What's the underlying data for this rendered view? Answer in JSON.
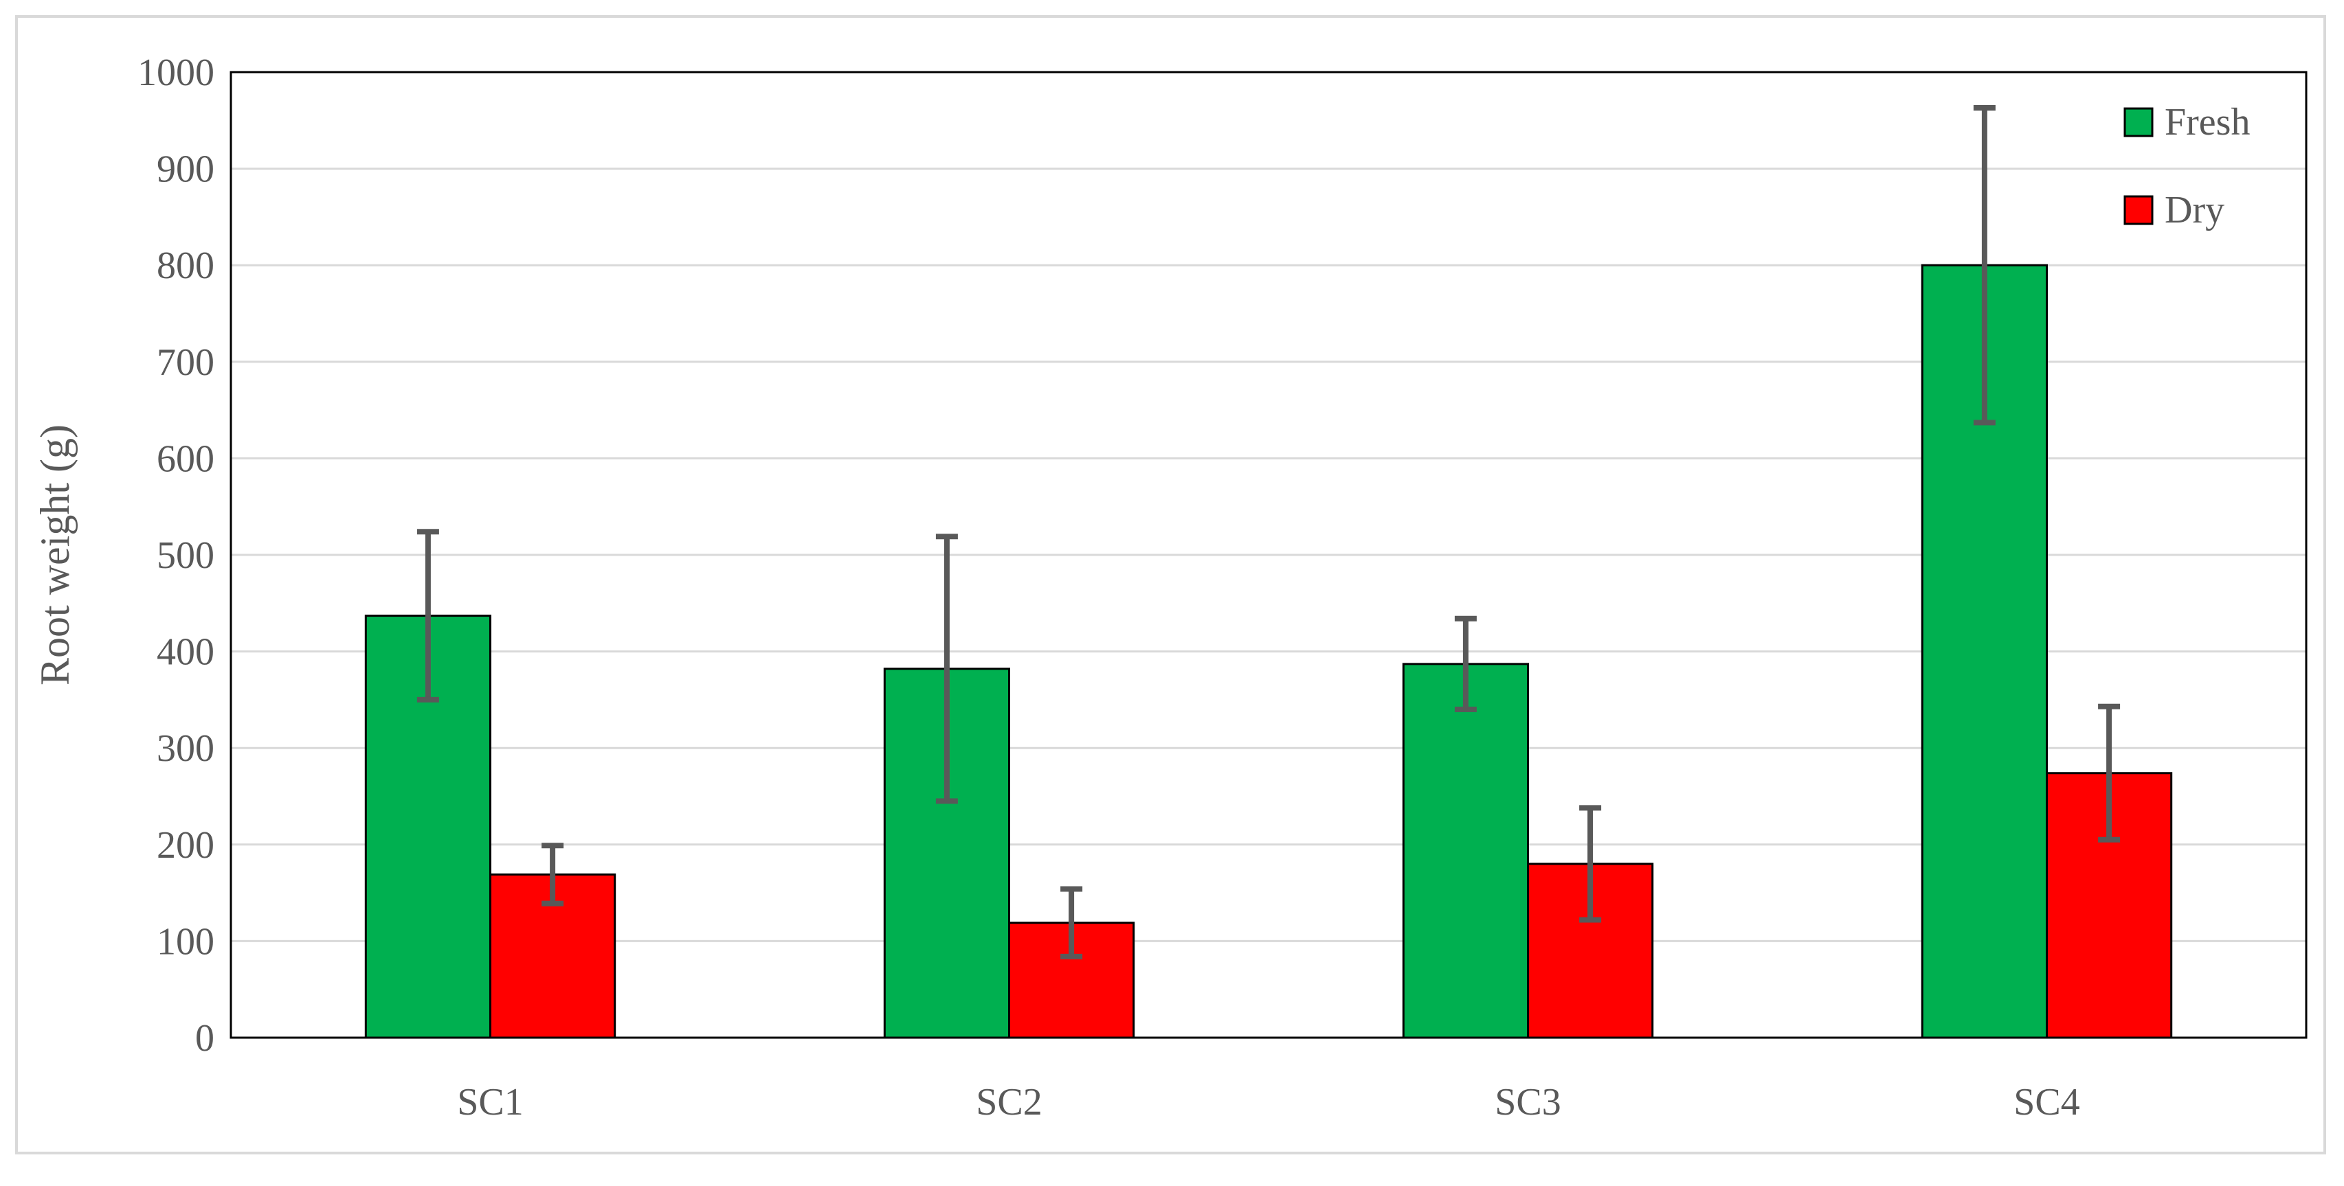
{
  "chart_data": {
    "type": "bar",
    "categories": [
      "SC1",
      "SC2",
      "SC3",
      "SC4"
    ],
    "series": [
      {
        "name": "Fresh",
        "color": "#00b050",
        "values": [
          437,
          382,
          387,
          800
        ],
        "errors": [
          87,
          137,
          47,
          163
        ]
      },
      {
        "name": "Dry",
        "color": "#ff0000",
        "values": [
          169,
          119,
          180,
          274
        ],
        "errors": [
          30,
          35,
          58,
          69
        ]
      }
    ],
    "title": "",
    "xlabel": "",
    "ylabel": "Root weight (g)",
    "ylim": [
      0,
      1000
    ],
    "yticks": [
      "0",
      "100",
      "200",
      "300",
      "400",
      "500",
      "600",
      "700",
      "800",
      "900",
      "1000"
    ],
    "grid": true,
    "legend_position": "top-right",
    "error_bar_color": "#595959",
    "gridline_color": "#d9d9d9"
  }
}
